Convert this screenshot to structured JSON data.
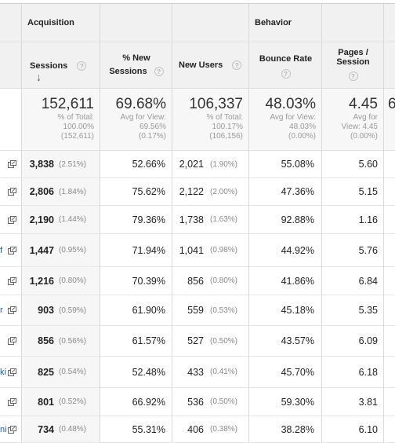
{
  "groups": {
    "acquisition": "Acquisition",
    "behavior": "Behavior"
  },
  "columns": {
    "sessions": "Sessions",
    "new_sessions_l1": "% New",
    "new_sessions_l2": "Sessions",
    "new_users": "New Users",
    "bounce_rate": "Bounce Rate",
    "pages_l1": "Pages /",
    "pages_l2": "Session",
    "help_glyph": "?",
    "sort_glyph": "↓"
  },
  "totals": {
    "sessions": {
      "value": "152,611",
      "l1": "% of Total:",
      "l2": "100.00%",
      "l3": "(152,611)"
    },
    "new_sessions": {
      "value": "69.68%",
      "l1": "Avg for View:",
      "l2": "69.56%",
      "l3": "(0.17%)"
    },
    "new_users": {
      "value": "106,337",
      "l1": "% of Total:",
      "l2": "100.17%",
      "l3": "(106,156)"
    },
    "bounce_rate": {
      "value": "48.03%",
      "l1": "Avg for View:",
      "l2": "48.03%",
      "l3": "(0.00%)"
    },
    "pages": {
      "value": "4.45",
      "l1": "Avg for",
      "l2": "View: 4.45",
      "l3": "(0.00%)"
    },
    "cut_value": "6"
  },
  "rows": [
    {
      "prefix": "",
      "sessions": "3,838",
      "sessions_pct": "(2.51%)",
      "new_sessions": "52.66%",
      "new_users": "2,021",
      "new_users_pct": "(1.90%)",
      "bounce": "55.08%",
      "pages": "5.60"
    },
    {
      "prefix": "",
      "sessions": "2,806",
      "sessions_pct": "(1.84%)",
      "new_sessions": "75.62%",
      "new_users": "2,122",
      "new_users_pct": "(2.00%)",
      "bounce": "47.36%",
      "pages": "5.15"
    },
    {
      "prefix": "",
      "sessions": "2,190",
      "sessions_pct": "(1.44%)",
      "new_sessions": "79.36%",
      "new_users": "1,738",
      "new_users_pct": "(1.63%)",
      "bounce": "92.88%",
      "pages": "1.16"
    },
    {
      "prefix": "f",
      "sessions": "1,447",
      "sessions_pct": "(0.95%)",
      "new_sessions": "71.94%",
      "new_users": "1,041",
      "new_users_pct": "(0.98%)",
      "bounce": "44.92%",
      "pages": "5.76"
    },
    {
      "prefix": "",
      "sessions": "1,216",
      "sessions_pct": "(0.80%)",
      "new_sessions": "70.39%",
      "new_users": "856",
      "new_users_pct": "(0.80%)",
      "bounce": "41.86%",
      "pages": "6.84"
    },
    {
      "prefix": "r",
      "sessions": "903",
      "sessions_pct": "(0.59%)",
      "new_sessions": "61.90%",
      "new_users": "559",
      "new_users_pct": "(0.53%)",
      "bounce": "45.18%",
      "pages": "5.35"
    },
    {
      "prefix": "",
      "sessions": "856",
      "sessions_pct": "(0.56%)",
      "new_sessions": "61.57%",
      "new_users": "527",
      "new_users_pct": "(0.50%)",
      "bounce": "43.57%",
      "pages": "6.09"
    },
    {
      "prefix": "ki",
      "sessions": "825",
      "sessions_pct": "(0.54%)",
      "new_sessions": "52.48%",
      "new_users": "433",
      "new_users_pct": "(0.41%)",
      "bounce": "45.70%",
      "pages": "6.18"
    },
    {
      "prefix": "",
      "sessions": "801",
      "sessions_pct": "(0.52%)",
      "new_sessions": "66.92%",
      "new_users": "536",
      "new_users_pct": "(0.50%)",
      "bounce": "59.30%",
      "pages": "3.81"
    },
    {
      "prefix": "ni",
      "sessions": "734",
      "sessions_pct": "(0.48%)",
      "new_sessions": "55.31%",
      "new_users": "406",
      "new_users_pct": "(0.38%)",
      "bounce": "38.28%",
      "pages": "6.10"
    }
  ]
}
